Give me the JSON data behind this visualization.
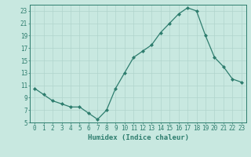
{
  "x": [
    0,
    1,
    2,
    3,
    4,
    5,
    6,
    7,
    8,
    9,
    10,
    11,
    12,
    13,
    14,
    15,
    16,
    17,
    18,
    19,
    20,
    21,
    22,
    23
  ],
  "y": [
    10.5,
    9.5,
    8.5,
    8.0,
    7.5,
    7.5,
    6.5,
    5.5,
    7.0,
    10.5,
    13.0,
    15.5,
    16.5,
    17.5,
    19.5,
    21.0,
    22.5,
    23.5,
    23.0,
    19.0,
    15.5,
    14.0,
    12.0,
    11.5
  ],
  "line_color": "#2e7d6e",
  "marker": "D",
  "markersize": 2.0,
  "linewidth": 0.9,
  "bg_color": "#c8e8e0",
  "grid_major_color": "#b0d4cc",
  "grid_minor_color": "#c0dcdc",
  "xlabel": "Humidex (Indice chaleur)",
  "xlabel_fontsize": 6.5,
  "tick_fontsize": 5.5,
  "xlim": [
    -0.5,
    23.5
  ],
  "ylim": [
    5,
    24
  ],
  "yticks": [
    5,
    7,
    9,
    11,
    13,
    15,
    17,
    19,
    21,
    23
  ],
  "xticks": [
    0,
    1,
    2,
    3,
    4,
    5,
    6,
    7,
    8,
    9,
    10,
    11,
    12,
    13,
    14,
    15,
    16,
    17,
    18,
    19,
    20,
    21,
    22,
    23
  ]
}
